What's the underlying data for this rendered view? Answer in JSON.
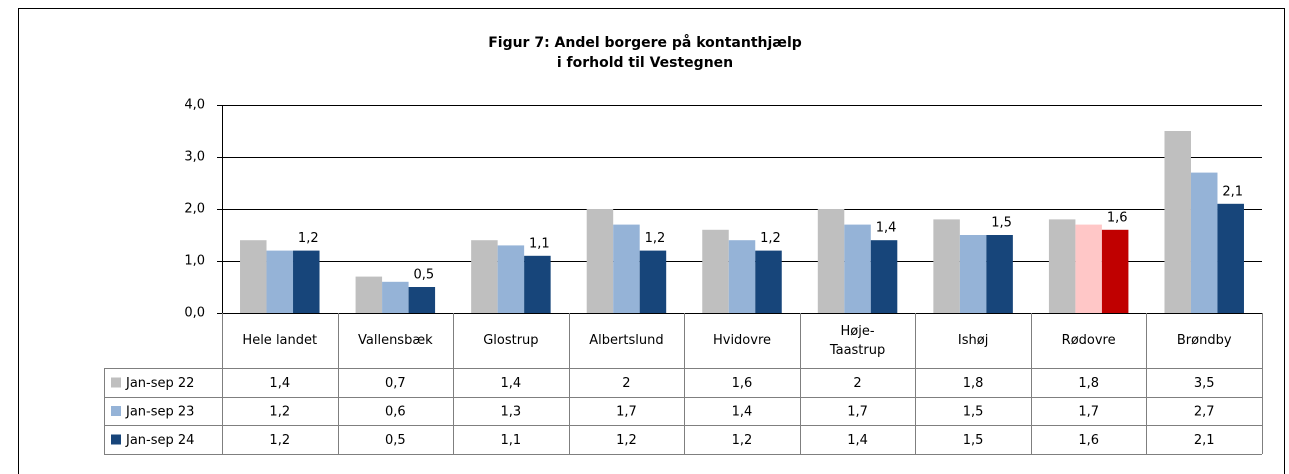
{
  "chart_data": {
    "type": "bar",
    "title": "Figur 7: Andel borgere på kontanthjælp\ni forhold til Vestegnen",
    "categories": [
      "Hele landet",
      "Vallensbæk",
      "Glostrup",
      "Albertslund",
      "Hvidovre",
      "Høje-\nTaastrup",
      "Ishøj",
      "Rødovre",
      "Brøndby"
    ],
    "series": [
      {
        "name": "Jan-sep 22",
        "color": "#bfbfbf",
        "values": [
          1.4,
          0.7,
          1.4,
          2,
          1.6,
          2,
          1.8,
          1.8,
          3.5
        ],
        "value_labels": [
          "1,4",
          "0,7",
          "1,4",
          "2",
          "1,6",
          "2",
          "1,8",
          "1,8",
          "3,5"
        ]
      },
      {
        "name": "Jan-sep 23",
        "color": "#95b3d7",
        "colors": [
          "#95b3d7",
          "#95b3d7",
          "#95b3d7",
          "#95b3d7",
          "#95b3d7",
          "#95b3d7",
          "#95b3d7",
          "#ffc7c7",
          "#95b3d7"
        ],
        "values": [
          1.2,
          0.6,
          1.3,
          1.7,
          1.4,
          1.7,
          1.5,
          1.7,
          2.7
        ],
        "value_labels": [
          "1,2",
          "0,6",
          "1,3",
          "1,7",
          "1,4",
          "1,7",
          "1,5",
          "1,7",
          "2,7"
        ]
      },
      {
        "name": "Jan-sep 24",
        "color": "#17457a",
        "colors": [
          "#17457a",
          "#17457a",
          "#17457a",
          "#17457a",
          "#17457a",
          "#17457a",
          "#17457a",
          "#c00000",
          "#17457a"
        ],
        "values": [
          1.2,
          0.5,
          1.1,
          1.2,
          1.2,
          1.4,
          1.5,
          1.6,
          2.1
        ],
        "value_labels": [
          "1,2",
          "0,5",
          "1,1",
          "1,2",
          "1,2",
          "1,4",
          "1,5",
          "1,6",
          "2,1"
        ],
        "data_labels": true
      }
    ],
    "ylim": [
      0,
      4
    ],
    "yticks": [
      {
        "value": 0,
        "label": "0,0"
      },
      {
        "value": 1,
        "label": "1,0"
      },
      {
        "value": 2,
        "label": "2,0"
      },
      {
        "value": 3,
        "label": "3,0"
      },
      {
        "value": 4,
        "label": "4,0"
      }
    ],
    "grid": true
  }
}
